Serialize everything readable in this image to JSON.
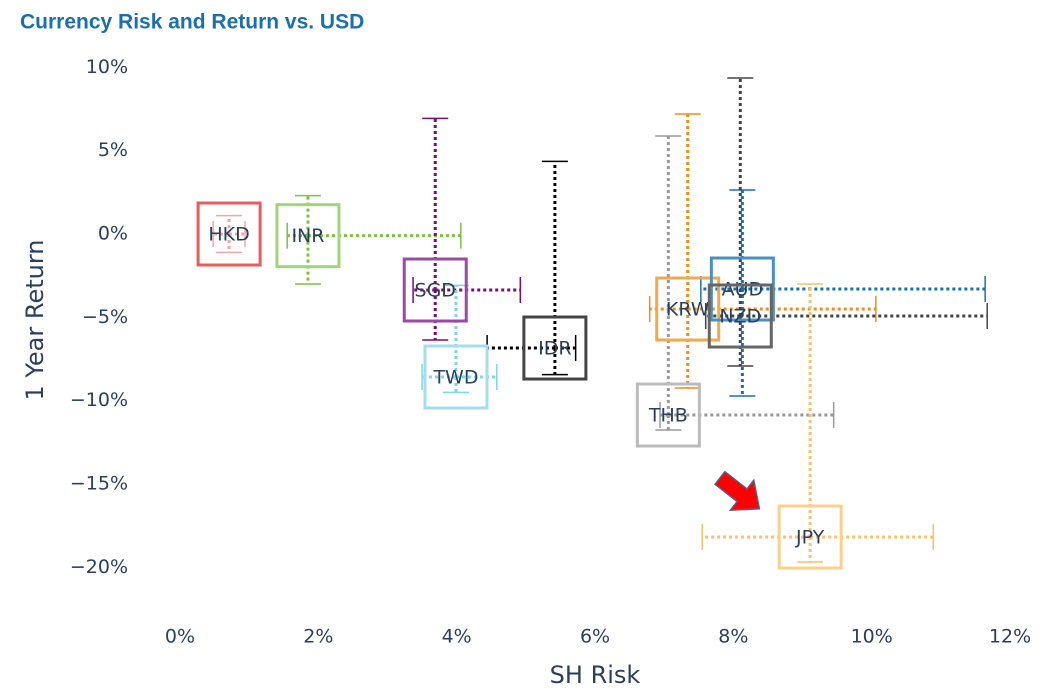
{
  "chart_data": {
    "type": "scatter",
    "title": "Currency Risk and Return vs. USD",
    "xlabel": "SH Risk",
    "ylabel": "1 Year Return",
    "xlim": [
      -0.5,
      12.3
    ],
    "ylim": [
      -23.5,
      10.5
    ],
    "xticks": [
      {
        "value": 0,
        "label": "0%"
      },
      {
        "value": 2,
        "label": "2%"
      },
      {
        "value": 4,
        "label": "4%"
      },
      {
        "value": 6,
        "label": "6%"
      },
      {
        "value": 8,
        "label": "8%"
      },
      {
        "value": 10,
        "label": "10%"
      },
      {
        "value": 12,
        "label": "12%"
      }
    ],
    "yticks": [
      {
        "value": 10,
        "label": "10%"
      },
      {
        "value": 5,
        "label": "5%"
      },
      {
        "value": 0,
        "label": "0%"
      },
      {
        "value": -5,
        "label": "−5%"
      },
      {
        "value": -10,
        "label": "−10%"
      },
      {
        "value": -15,
        "label": "−15%"
      },
      {
        "value": -20,
        "label": "−20%"
      }
    ],
    "grid": false,
    "points": [
      {
        "label": "HKD",
        "color": "#e85c5c",
        "error_color": "#f4a6a6",
        "x": 0.71,
        "y": 0,
        "x_err": [
          0.23,
          0.23
        ],
        "y_err": [
          1.1,
          1.1
        ]
      },
      {
        "label": "INR",
        "color": "#a3d47a",
        "error_color": "#7cc040",
        "x": 1.85,
        "y": -0.1,
        "x_err": [
          0.3,
          2.21
        ],
        "y_err": [
          2.9,
          2.4
        ]
      },
      {
        "label": "SGD",
        "color": "#9a4aa4",
        "error_color": "#7b0a7b",
        "x": 3.69,
        "y": -3.36,
        "x_err": [
          0.32,
          1.23
        ],
        "y_err": [
          3,
          10.3
        ]
      },
      {
        "label": "IDR",
        "color": "#444444",
        "error_color": "#000000",
        "x": 5.42,
        "y": -6.84,
        "x_err": [
          0.98,
          0.3
        ],
        "y_err": [
          1.6,
          11.2
        ]
      },
      {
        "label": "TWD",
        "color": "#a6dcf0",
        "error_color": "#7fd3ee",
        "x": 3.99,
        "y": -8.58,
        "x_err": [
          0.49,
          0.59
        ],
        "y_err": [
          0.92,
          5.5
        ]
      },
      {
        "label": "KRW",
        "color": "#f5a84a",
        "error_color": "#f08c1a",
        "x": 7.34,
        "y": -4.5,
        "x_err": [
          0.55,
          2.72
        ],
        "y_err": [
          4.74,
          11.7
        ]
      },
      {
        "label": "AUD",
        "color": "#4a90c0",
        "error_color": "#1a6fb0",
        "x": 8.13,
        "y": -3.3,
        "x_err": [
          0.6,
          3.51
        ],
        "y_err": [
          6.42,
          5.94
        ]
      },
      {
        "label": "NZD",
        "color": "#666666",
        "error_color": "#444444",
        "x": 8.1,
        "y": -4.92,
        "x_err": [
          0.5,
          3.57
        ],
        "y_err": [
          3,
          14.28
        ]
      },
      {
        "label": "THB",
        "color": "#bbbbbb",
        "error_color": "#999999",
        "x": 7.06,
        "y": -10.86,
        "x_err": [
          0.12,
          2.39
        ],
        "y_err": [
          0.9,
          16.74
        ]
      },
      {
        "label": "JPY",
        "color": "#fcd08a",
        "error_color": "#f9c06a",
        "x": 9.11,
        "y": -18.18,
        "x_err": [
          1.56,
          1.78
        ],
        "y_err": [
          1.5,
          15.18
        ]
      }
    ]
  }
}
